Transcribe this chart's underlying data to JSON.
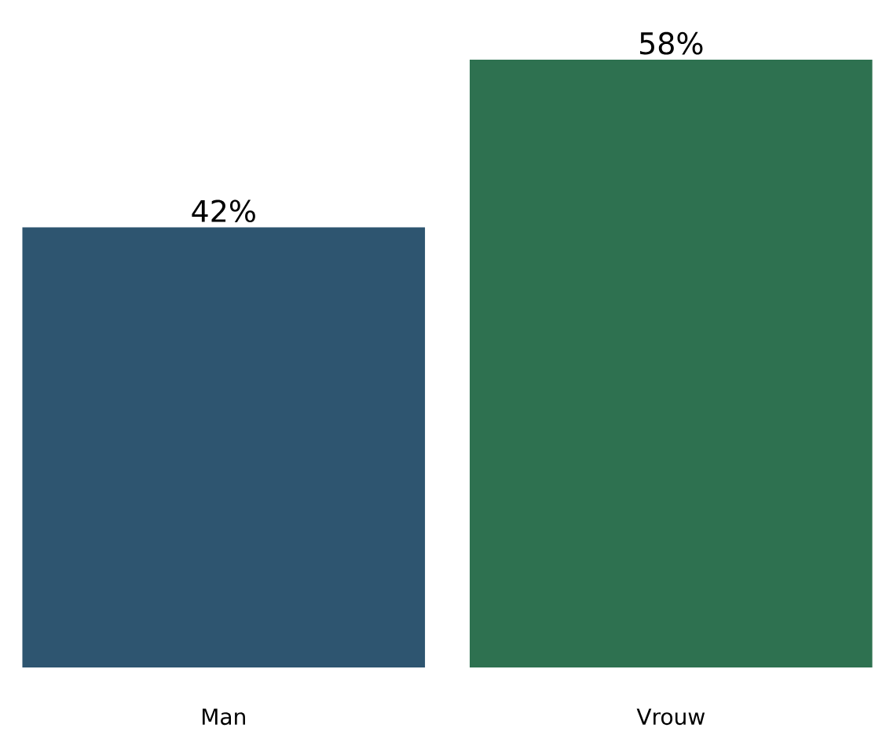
{
  "chart_data": {
    "type": "bar",
    "categories": [
      "Man",
      "Vrouw"
    ],
    "values": [
      42,
      58
    ],
    "colors": [
      "#2e5570",
      "#2e7150"
    ],
    "value_labels": [
      "42%",
      "58%"
    ]
  }
}
